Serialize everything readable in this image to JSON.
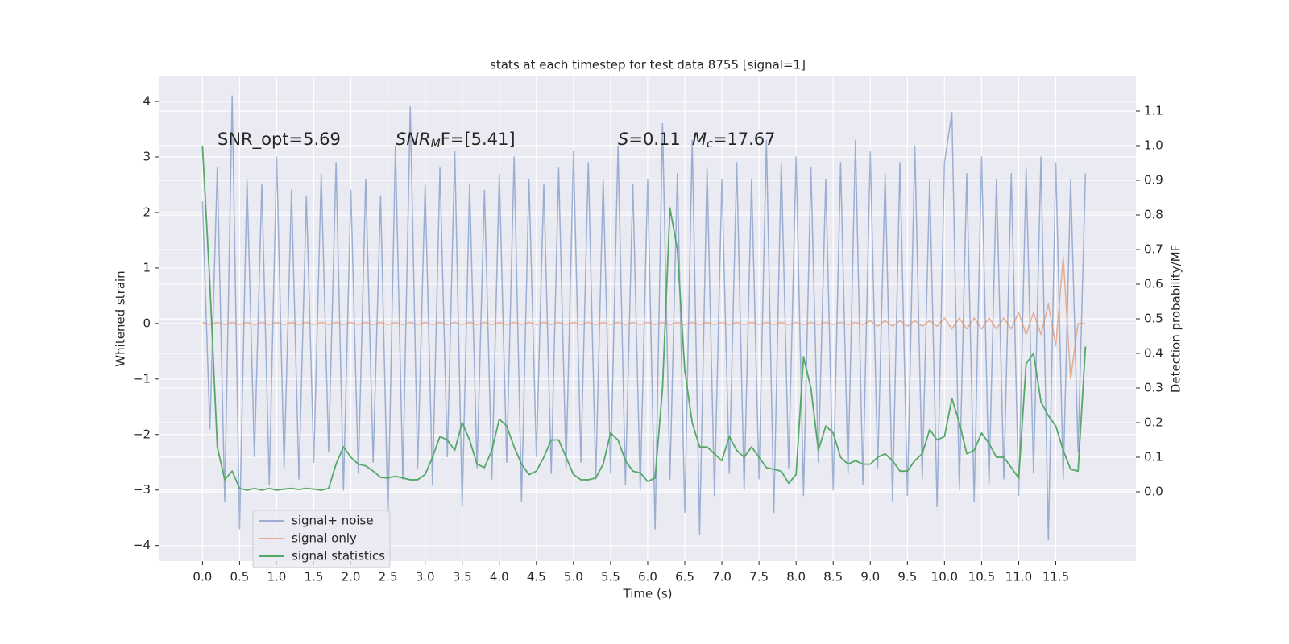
{
  "chart_data": {
    "type": "line",
    "title": "stats at each timestep for test data 8755 [signal=1]",
    "xlabel": "Time (s)",
    "ylabel": "Whitened strain",
    "y2label": "Detection probability/MF",
    "grid": true,
    "legend": "lower left",
    "annotations": [
      {
        "main": "SNR_opt=5.69"
      },
      {
        "main": "SNR",
        "sub": "M",
        "rest": "F=[5.41]"
      },
      {
        "main": "S",
        "rest": "=0.11"
      },
      {
        "main": "M",
        "sub": "c",
        "rest": "=17.67"
      }
    ],
    "xlim": [
      -0.59,
      12.58
    ],
    "ylim": [
      -4.28,
      4.45
    ],
    "y2lim": [
      -0.2,
      1.2
    ],
    "xticks": [
      {
        "value": 0,
        "label": "0.0"
      },
      {
        "value": 0.5,
        "label": "0.5"
      },
      {
        "value": 1,
        "label": "1.0"
      },
      {
        "value": 1.5,
        "label": "1.5"
      },
      {
        "value": 2,
        "label": "2.0"
      },
      {
        "value": 2.5,
        "label": "2.5"
      },
      {
        "value": 3,
        "label": "3.0"
      },
      {
        "value": 3.5,
        "label": "3.5"
      },
      {
        "value": 4,
        "label": "4.0"
      },
      {
        "value": 4.5,
        "label": "4.5"
      },
      {
        "value": 5,
        "label": "5.0"
      },
      {
        "value": 5.5,
        "label": "5.5"
      },
      {
        "value": 6,
        "label": "6.0"
      },
      {
        "value": 6.5,
        "label": "6.5"
      },
      {
        "value": 7,
        "label": "7.0"
      },
      {
        "value": 7.5,
        "label": "7.5"
      },
      {
        "value": 8,
        "label": "8.0"
      },
      {
        "value": 8.5,
        "label": "8.5"
      },
      {
        "value": 9,
        "label": "9.0"
      },
      {
        "value": 9.5,
        "label": "9.5"
      },
      {
        "value": 10,
        "label": "10.0"
      },
      {
        "value": 10.5,
        "label": "10.5"
      },
      {
        "value": 11,
        "label": "11.0"
      },
      {
        "value": 11.5,
        "label": "11.5"
      }
    ],
    "yticks": [
      {
        "value": -4,
        "label": "−4"
      },
      {
        "value": -3,
        "label": "−3"
      },
      {
        "value": -2,
        "label": "−2"
      },
      {
        "value": -1,
        "label": "−1"
      },
      0,
      1,
      2,
      3,
      4
    ],
    "y2ticks": [
      {
        "value": 0,
        "label": "0.0"
      },
      {
        "value": 0.1,
        "label": "0.1"
      },
      {
        "value": 0.2,
        "label": "0.2"
      },
      {
        "value": 0.3,
        "label": "0.3"
      },
      {
        "value": 0.4,
        "label": "0.4"
      },
      {
        "value": 0.5,
        "label": "0.5"
      },
      {
        "value": 0.6,
        "label": "0.6"
      },
      {
        "value": 0.7,
        "label": "0.7"
      },
      {
        "value": 0.8,
        "label": "0.8"
      },
      {
        "value": 0.9,
        "label": "0.9"
      },
      {
        "value": 1,
        "label": "1.0"
      },
      {
        "value": 1.1,
        "label": "1.1"
      }
    ],
    "x": [
      0,
      0.1,
      0.2,
      0.3,
      0.4,
      0.5,
      0.6,
      0.7,
      0.8,
      0.9,
      1,
      1.1,
      1.2,
      1.3,
      1.4,
      1.5,
      1.6,
      1.7,
      1.8,
      1.9,
      2,
      2.1,
      2.2,
      2.3,
      2.4,
      2.5,
      2.6,
      2.7,
      2.8,
      2.9,
      3,
      3.1,
      3.2,
      3.3,
      3.4,
      3.5,
      3.6,
      3.7,
      3.8,
      3.9,
      4,
      4.1,
      4.2,
      4.3,
      4.4,
      4.5,
      4.6,
      4.7,
      4.8,
      4.9,
      5,
      5.1,
      5.2,
      5.3,
      5.4,
      5.5,
      5.6,
      5.7,
      5.8,
      5.9,
      6,
      6.1,
      6.2,
      6.3,
      6.4,
      6.5,
      6.6,
      6.7,
      6.8,
      6.9,
      7,
      7.1,
      7.2,
      7.3,
      7.4,
      7.5,
      7.6,
      7.7,
      7.8,
      7.9,
      8,
      8.1,
      8.2,
      8.3,
      8.4,
      8.5,
      8.6,
      8.7,
      8.8,
      8.9,
      9,
      9.1,
      9.2,
      9.3,
      9.4,
      9.5,
      9.6,
      9.7,
      9.8,
      9.9,
      10,
      10.1,
      10.2,
      10.3,
      10.4,
      10.5,
      10.6,
      10.7,
      10.8,
      10.9,
      11,
      11.1,
      11.2,
      11.3,
      11.4,
      11.5,
      11.6,
      11.7,
      11.8,
      11.9
    ],
    "series": [
      {
        "name": "signal+ noise",
        "color": "#4c72b0",
        "opacity": 0.5,
        "values": [
          2.2,
          -1.9,
          2.8,
          -3.2,
          4.1,
          -3.7,
          2.6,
          -2.4,
          2.5,
          -2.9,
          3.0,
          -2.6,
          2.4,
          -2.8,
          2.3,
          -2.5,
          2.7,
          -2.3,
          2.9,
          -3.0,
          2.4,
          -2.7,
          2.6,
          -2.5,
          2.3,
          -3.5,
          3.2,
          -2.8,
          3.9,
          -2.6,
          2.5,
          -2.9,
          2.8,
          -2.4,
          3.1,
          -3.3,
          2.5,
          -2.6,
          2.4,
          -2.8,
          2.7,
          -2.5,
          3.0,
          -3.2,
          2.6,
          -2.4,
          2.5,
          -2.7,
          2.8,
          -2.6,
          3.1,
          -2.5,
          2.9,
          -2.8,
          2.6,
          -2.7,
          3.2,
          -2.9,
          2.5,
          -3.0,
          2.6,
          -3.7,
          3.6,
          -2.8,
          2.7,
          -3.4,
          3.3,
          -3.8,
          2.8,
          -3.1,
          2.6,
          -2.7,
          2.9,
          -3.0,
          2.6,
          -2.8,
          3.3,
          -3.4,
          2.9,
          -2.6,
          3.0,
          -3.1,
          2.8,
          -2.5,
          2.6,
          -3.0,
          2.9,
          -2.7,
          3.3,
          -2.9,
          3.1,
          -2.6,
          2.7,
          -3.2,
          2.9,
          -3.1,
          3.2,
          -2.8,
          2.6,
          -3.3,
          2.9,
          3.8,
          -3.0,
          2.7,
          -3.2,
          3.0,
          -2.9,
          2.6,
          -2.8,
          2.7,
          -3.1,
          2.8,
          -2.7,
          3.0,
          -3.9,
          2.9,
          -2.8,
          2.6,
          -2.3,
          2.7
        ]
      },
      {
        "name": "signal only",
        "color": "#dd8452",
        "opacity": 0.6,
        "values": [
          0.02,
          -0.02,
          0.02,
          -0.02,
          0.02,
          -0.02,
          0.02,
          -0.02,
          0.02,
          -0.02,
          0.02,
          -0.02,
          0.02,
          -0.02,
          0.02,
          -0.02,
          0.02,
          -0.02,
          0.02,
          -0.02,
          0.02,
          -0.02,
          0.02,
          -0.02,
          0.02,
          -0.02,
          0.02,
          -0.02,
          0.02,
          -0.02,
          0.02,
          -0.02,
          0.02,
          -0.02,
          0.02,
          -0.02,
          0.02,
          -0.02,
          0.02,
          -0.02,
          0.02,
          -0.02,
          0.02,
          -0.02,
          0.02,
          -0.02,
          0.02,
          -0.02,
          0.02,
          -0.02,
          0.02,
          -0.02,
          0.02,
          -0.02,
          0.02,
          -0.02,
          0.02,
          -0.02,
          0.02,
          -0.02,
          0.02,
          -0.02,
          0.02,
          -0.02,
          0.02,
          -0.02,
          0.02,
          -0.02,
          0.02,
          -0.02,
          0.02,
          -0.02,
          0.02,
          -0.02,
          0.02,
          -0.02,
          0.02,
          -0.02,
          0.02,
          -0.02,
          0.02,
          -0.02,
          0.02,
          -0.02,
          0.02,
          -0.02,
          0.02,
          -0.02,
          0.02,
          -0.02,
          0.05,
          -0.05,
          0.05,
          -0.05,
          0.05,
          -0.05,
          0.05,
          -0.05,
          0.05,
          -0.05,
          0.1,
          -0.1,
          0.1,
          -0.1,
          0.1,
          -0.1,
          0.1,
          -0.1,
          0.1,
          -0.1,
          0.2,
          -0.2,
          0.2,
          -0.2,
          0.35,
          -0.4,
          1.2,
          -1.0,
          0,
          0
        ]
      },
      {
        "name": "signal statistics",
        "color": "#55a868",
        "opacity": 1,
        "axis": "y2",
        "values": [
          1.0,
          0.6,
          0.13,
          0.035,
          0.06,
          0.01,
          0.005,
          0.01,
          0.005,
          0.01,
          0.005,
          0.008,
          0.01,
          0.007,
          0.01,
          0.008,
          0.005,
          0.01,
          0.08,
          0.13,
          0.1,
          0.08,
          0.075,
          0.06,
          0.042,
          0.04,
          0.045,
          0.04,
          0.035,
          0.035,
          0.05,
          0.1,
          0.16,
          0.15,
          0.12,
          0.2,
          0.15,
          0.08,
          0.07,
          0.12,
          0.21,
          0.19,
          0.13,
          0.08,
          0.05,
          0.06,
          0.1,
          0.15,
          0.15,
          0.1,
          0.05,
          0.035,
          0.035,
          0.04,
          0.08,
          0.17,
          0.15,
          0.09,
          0.06,
          0.055,
          0.03,
          0.04,
          0.3,
          0.82,
          0.7,
          0.35,
          0.2,
          0.13,
          0.13,
          0.11,
          0.09,
          0.16,
          0.12,
          0.1,
          0.13,
          0.1,
          0.07,
          0.065,
          0.06,
          0.025,
          0.05,
          0.39,
          0.3,
          0.12,
          0.19,
          0.17,
          0.1,
          0.08,
          0.09,
          0.08,
          0.08,
          0.1,
          0.11,
          0.09,
          0.06,
          0.06,
          0.09,
          0.11,
          0.18,
          0.15,
          0.16,
          0.27,
          0.2,
          0.11,
          0.12,
          0.17,
          0.14,
          0.1,
          0.1,
          0.07,
          0.04,
          0.37,
          0.4,
          0.26,
          0.22,
          0.19,
          0.12,
          0.065,
          0.06,
          0.42
        ]
      }
    ]
  }
}
